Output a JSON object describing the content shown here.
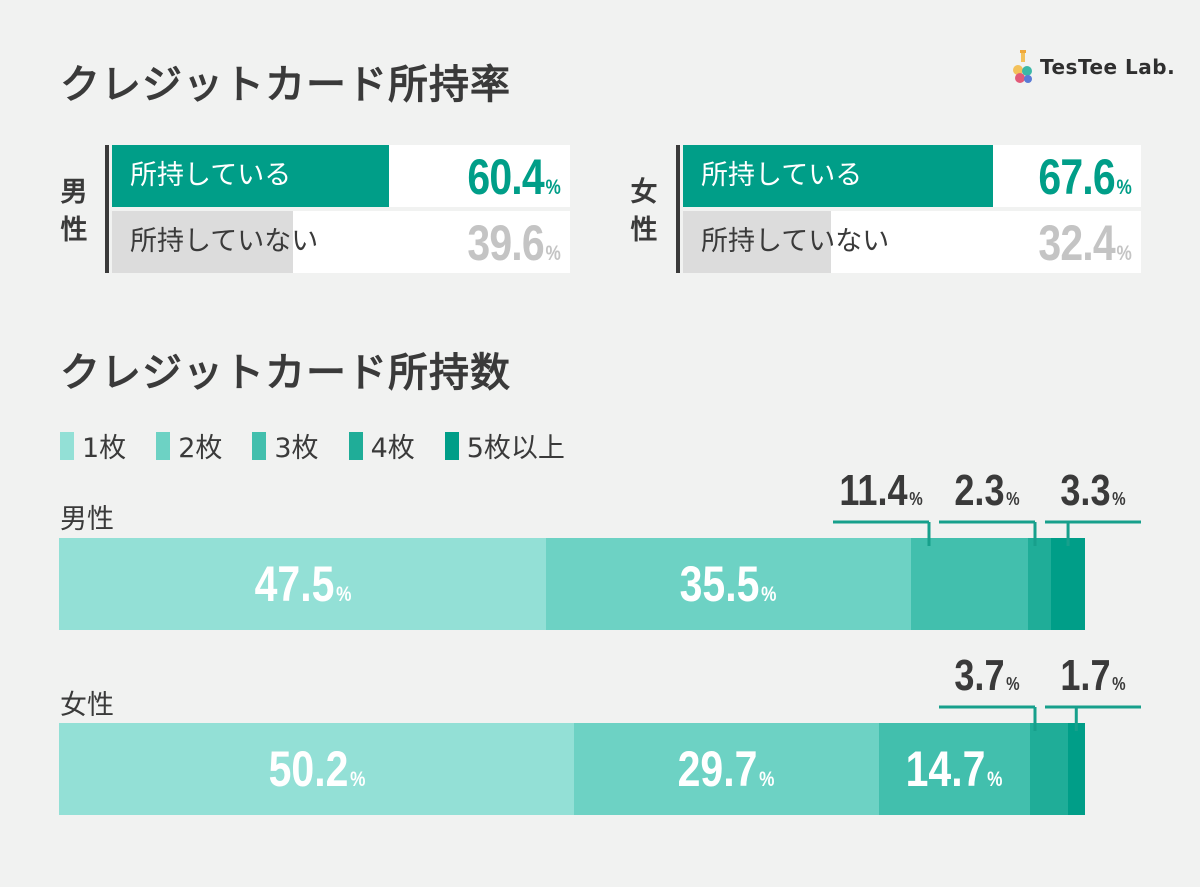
{
  "brand": {
    "logo_text": "TesTee Lab."
  },
  "titles": {
    "ownership": "クレジットカード所持率",
    "count": "クレジットカード所持数"
  },
  "ownership": {
    "male": {
      "gender": "男性",
      "rows": [
        {
          "label": "所持している",
          "value": "60.4"
        },
        {
          "label": "所持していない",
          "value": "39.6"
        }
      ]
    },
    "female": {
      "gender": "女性",
      "rows": [
        {
          "label": "所持している",
          "value": "67.6"
        },
        {
          "label": "所持していない",
          "value": "32.4"
        }
      ]
    }
  },
  "count": {
    "legend": [
      "1枚",
      "2枚",
      "3枚",
      "4枚",
      "5枚以上"
    ],
    "male_label": "男性",
    "female_label": "女性"
  },
  "percent_unit": "%",
  "colors": {
    "own_fill": "#009e88",
    "not_own_fill": "#dcdcdc",
    "own_text": "#009e88",
    "not_own_text": "#c4c4c4",
    "segments": [
      "#93e0d6",
      "#6dd2c4",
      "#42bfad",
      "#1fad98",
      "#009e88"
    ]
  },
  "chart_data": [
    {
      "type": "bar",
      "title": "クレジットカード所持率",
      "categories": [
        "所持している",
        "所持していない"
      ],
      "series": [
        {
          "name": "男性",
          "values": [
            60.4,
            39.6
          ]
        },
        {
          "name": "女性",
          "values": [
            67.6,
            32.4
          ]
        }
      ],
      "unit": "%"
    },
    {
      "type": "bar",
      "stacked": true,
      "title": "クレジットカード所持数",
      "categories": [
        "男性",
        "女性"
      ],
      "series": [
        {
          "name": "1枚",
          "values": [
            47.5,
            50.2
          ]
        },
        {
          "name": "2枚",
          "values": [
            35.5,
            29.7
          ]
        },
        {
          "name": "3枚",
          "values": [
            11.4,
            14.7
          ]
        },
        {
          "name": "4枚",
          "values": [
            2.3,
            3.7
          ]
        },
        {
          "name": "5枚以上",
          "values": [
            3.3,
            1.7
          ]
        }
      ],
      "unit": "%"
    }
  ]
}
